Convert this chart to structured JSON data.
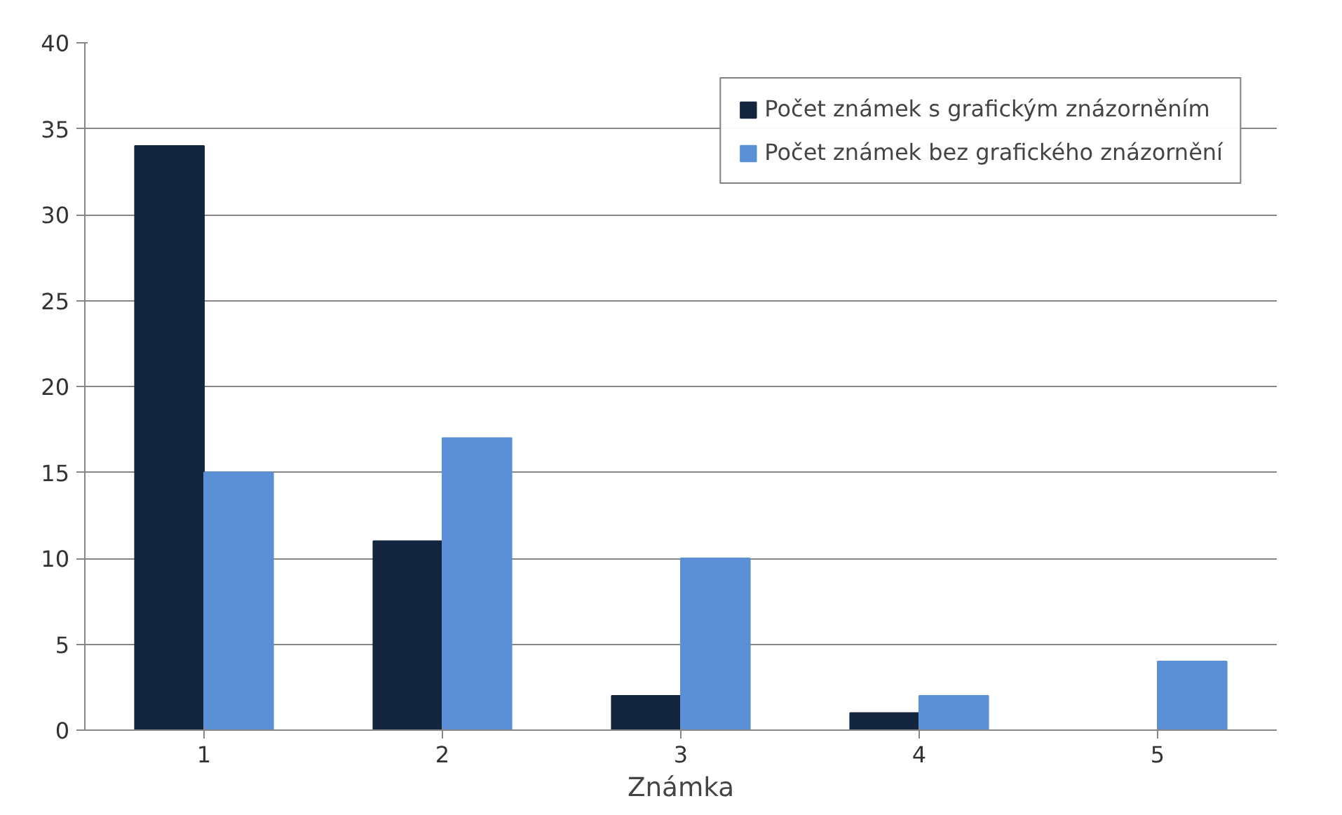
{
  "chart_data": {
    "type": "bar",
    "xlabel": "Známka",
    "categories": [
      "1",
      "2",
      "3",
      "4",
      "5"
    ],
    "series": [
      {
        "name": "Počet známek s grafickým znázorněním",
        "color": "#14253f",
        "values": [
          34,
          11,
          2,
          1,
          0
        ]
      },
      {
        "name": "Počet známek bez grafického znázornění",
        "color": "#5b8fd6",
        "values": [
          15,
          17,
          10,
          2,
          4
        ]
      }
    ],
    "ylim": [
      0,
      40
    ],
    "yticks": [
      0,
      5,
      10,
      15,
      20,
      25,
      30,
      35,
      40
    ],
    "grid": "y",
    "legend": "top right"
  }
}
